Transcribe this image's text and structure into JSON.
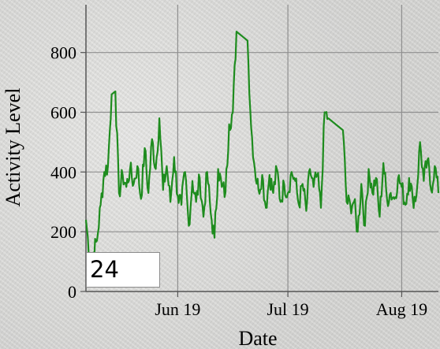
{
  "chart_data": {
    "type": "line",
    "xlabel": "Date",
    "ylabel": "Activity Level",
    "x_ticks": [
      "Jun 19",
      "Jul 19",
      "Aug 19"
    ],
    "y_ticks": [
      0,
      200,
      400,
      600,
      800
    ],
    "ylim": [
      0,
      960
    ],
    "xlim": [
      "2019-05-21",
      "2019-08-25"
    ],
    "grid": true,
    "line_color": "#1e8c1e",
    "series": [
      {
        "x": [
          "2019-05-21",
          "2019-05-22",
          "2019-05-23",
          "2019-05-24",
          "2019-05-25",
          "2019-05-26",
          "2019-05-27",
          "2019-05-28",
          "2019-05-29",
          "2019-05-30",
          "2019-05-31",
          "2019-06-01",
          "2019-06-02",
          "2019-06-03",
          "2019-06-04",
          "2019-06-05",
          "2019-06-06",
          "2019-06-07",
          "2019-06-08",
          "2019-06-09",
          "2019-06-10",
          "2019-06-11",
          "2019-06-12",
          "2019-06-13",
          "2019-06-14",
          "2019-06-15",
          "2019-06-16",
          "2019-06-17",
          "2019-06-18",
          "2019-06-19",
          "2019-06-20",
          "2019-06-21",
          "2019-06-22",
          "2019-06-23",
          "2019-06-24",
          "2019-06-25",
          "2019-06-26",
          "2019-06-27",
          "2019-06-28",
          "2019-06-29",
          "2019-06-30",
          "2019-07-01",
          "2019-07-02",
          "2019-07-03",
          "2019-07-04",
          "2019-07-05",
          "2019-07-06",
          "2019-07-07",
          "2019-07-08",
          "2019-07-09",
          "2019-07-10",
          "2019-07-11",
          "2019-07-12",
          "2019-07-13",
          "2019-07-14",
          "2019-07-15",
          "2019-07-16",
          "2019-07-17",
          "2019-07-18",
          "2019-07-19",
          "2019-07-20",
          "2019-07-21",
          "2019-07-22",
          "2019-07-23",
          "2019-07-24",
          "2019-07-25",
          "2019-07-26",
          "2019-07-27",
          "2019-07-28",
          "2019-07-29",
          "2019-07-30",
          "2019-07-31",
          "2019-08-01",
          "2019-08-02",
          "2019-08-03",
          "2019-08-04",
          "2019-08-05",
          "2019-08-06",
          "2019-08-07",
          "2019-08-08",
          "2019-08-09",
          "2019-08-10",
          "2019-08-11",
          "2019-08-12",
          "2019-08-13",
          "2019-08-14",
          "2019-08-15",
          "2019-08-16",
          "2019-08-17",
          "2019-08-18",
          "2019-08-19",
          "2019-08-20",
          "2019-08-21",
          "2019-08-22",
          "2019-08-23",
          "2019-08-24",
          "2019-08-25"
        ],
        "values": [
          240,
          120,
          130,
          170,
          290,
          400,
          420,
          660,
          670,
          330,
          390,
          350,
          410,
          360,
          420,
          310,
          480,
          330,
          510,
          410,
          580,
          340,
          420,
          300,
          450,
          320,
          290,
          400,
          220,
          370,
          300,
          380,
          250,
          400,
          260,
          180,
          410,
          350,
          330,
          560,
          600,
          870,
          860,
          850,
          840,
          550,
          410,
          340,
          390,
          280,
          390,
          330,
          410,
          300,
          360,
          330,
          400,
          370,
          290,
          360,
          270,
          410,
          350,
          390,
          280,
          600,
          580,
          570,
          560,
          550,
          540,
          300,
          290,
          300,
          200,
          360,
          220,
          410,
          330,
          380,
          250,
          430,
          310,
          330,
          310,
          380,
          350,
          290,
          380,
          310,
          320,
          500,
          370,
          440,
          340,
          420,
          330
        ]
      }
    ],
    "overlay_value": "24"
  }
}
